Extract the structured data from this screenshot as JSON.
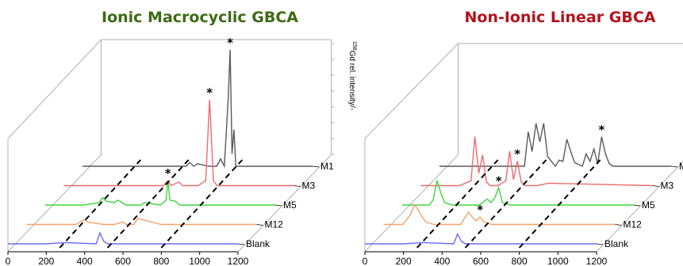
{
  "panels": [
    {
      "title": "Ionic Macrocyclic GBCA",
      "title_color": "#3d6b14",
      "ylabel": "Gd rel. intensity/-",
      "ylabel_superscript": "158"
    },
    {
      "title": "Non-Ionic Linear GBCA",
      "title_color": "#b3121b"
    }
  ],
  "chart_data": [
    {
      "type": "line",
      "title": "Ionic Macrocyclic GBCA",
      "ylabel": "158Gd rel. intensity/-",
      "xlim": [
        0,
        1200
      ],
      "x_ticks": [
        "0",
        "200",
        "400",
        "600",
        "800",
        "1000",
        "1200"
      ],
      "series": [
        {
          "name": "M1",
          "color": "#5a5a5a",
          "x": [
            0,
            300,
            540,
            560,
            580,
            600,
            660,
            700,
            720,
            740,
            760,
            770,
            780,
            790,
            800,
            1200
          ],
          "y": [
            0,
            0,
            0,
            3,
            0,
            2,
            0,
            0,
            6,
            0,
            55,
            95,
            10,
            30,
            0,
            0
          ],
          "peaks": [
            {
              "x": 770,
              "y": 95,
              "marker": "*"
            }
          ]
        },
        {
          "name": "M3",
          "color": "#ee6b6e",
          "x": [
            0,
            300,
            520,
            540,
            560,
            600,
            620,
            700,
            740,
            760,
            780,
            800,
            1200
          ],
          "y": [
            0,
            0,
            0,
            4,
            0,
            3,
            0,
            0,
            4,
            70,
            4,
            0,
            0
          ],
          "peaks": [
            {
              "x": 760,
              "y": 70,
              "marker": "*"
            }
          ]
        },
        {
          "name": "M5",
          "color": "#3fd53f",
          "x": [
            0,
            200,
            280,
            300,
            320,
            360,
            380,
            400,
            420,
            500,
            520,
            600,
            630,
            640,
            650,
            680,
            700,
            1200
          ],
          "y": [
            0,
            0,
            2,
            6,
            3,
            2,
            4,
            2,
            0,
            0,
            2,
            0,
            4,
            20,
            4,
            3,
            0,
            0
          ],
          "peaks": [
            {
              "x": 640,
              "y": 20,
              "marker": "*"
            }
          ]
        },
        {
          "name": "M12",
          "color": "#f4a46a",
          "x": [
            0,
            260,
            280,
            300,
            320,
            400,
            460,
            500,
            520,
            560,
            580,
            700,
            1200
          ],
          "y": [
            0,
            0,
            2,
            4,
            2,
            0,
            0,
            2,
            0,
            0,
            5,
            0,
            0
          ]
        },
        {
          "name": "Blank",
          "color": "#6b6bff",
          "x": [
            0,
            200,
            300,
            460,
            480,
            500,
            520,
            1200
          ],
          "y": [
            0,
            0,
            1,
            0,
            9,
            2,
            0,
            0
          ]
        }
      ]
    },
    {
      "type": "line",
      "title": "Non-Ionic Linear GBCA",
      "xlim": [
        0,
        1200
      ],
      "x_ticks": [
        "0",
        "200",
        "400",
        "600",
        "800",
        "1000",
        "1200"
      ],
      "series": [
        {
          "name": "M1",
          "color": "#5a5a5a",
          "x": [
            0,
            380,
            440,
            460,
            480,
            500,
            520,
            540,
            560,
            600,
            620,
            640,
            660,
            680,
            700,
            740,
            760,
            780,
            800,
            820,
            840,
            860,
            880,
            900,
            1200
          ],
          "y": [
            0,
            0,
            0,
            28,
            12,
            35,
            20,
            35,
            8,
            0,
            5,
            4,
            22,
            12,
            3,
            0,
            10,
            4,
            14,
            2,
            24,
            10,
            2,
            0,
            0
          ],
          "peaks": [
            {
              "x": 840,
              "y": 24,
              "marker": "*"
            }
          ]
        },
        {
          "name": "M3",
          "color": "#ee6b6e",
          "x": [
            0,
            200,
            260,
            280,
            300,
            320,
            340,
            360,
            380,
            400,
            440,
            460,
            480,
            500,
            520,
            540,
            560,
            600,
            660,
            1200
          ],
          "y": [
            0,
            0,
            4,
            40,
            10,
            25,
            3,
            0,
            0,
            0,
            4,
            28,
            5,
            20,
            3,
            0,
            0,
            0,
            2,
            0
          ],
          "peaks": [
            {
              "x": 500,
              "y": 20,
              "marker": "*"
            }
          ]
        },
        {
          "name": "M5",
          "color": "#3fd53f",
          "x": [
            0,
            140,
            160,
            180,
            200,
            220,
            260,
            400,
            440,
            460,
            480,
            500,
            520,
            560,
            1200
          ],
          "y": [
            0,
            0,
            4,
            20,
            10,
            2,
            0,
            0,
            5,
            2,
            6,
            14,
            2,
            0,
            0
          ],
          "peaks": [
            {
              "x": 500,
              "y": 14,
              "marker": "*"
            }
          ]
        },
        {
          "name": "M12",
          "color": "#f4a46a",
          "x": [
            0,
            100,
            140,
            160,
            180,
            200,
            220,
            260,
            400,
            440,
            460,
            480,
            500,
            520,
            560,
            1200
          ],
          "y": [
            0,
            0,
            8,
            16,
            12,
            6,
            2,
            0,
            0,
            10,
            6,
            3,
            6,
            2,
            0,
            0
          ],
          "peaks": [
            {
              "x": 500,
              "y": 6,
              "marker": "*"
            }
          ]
        },
        {
          "name": "Blank",
          "color": "#6b6bff",
          "x": [
            0,
            200,
            300,
            460,
            480,
            500,
            520,
            1200
          ],
          "y": [
            0,
            0,
            1,
            0,
            8,
            2,
            0,
            0
          ]
        }
      ]
    }
  ]
}
